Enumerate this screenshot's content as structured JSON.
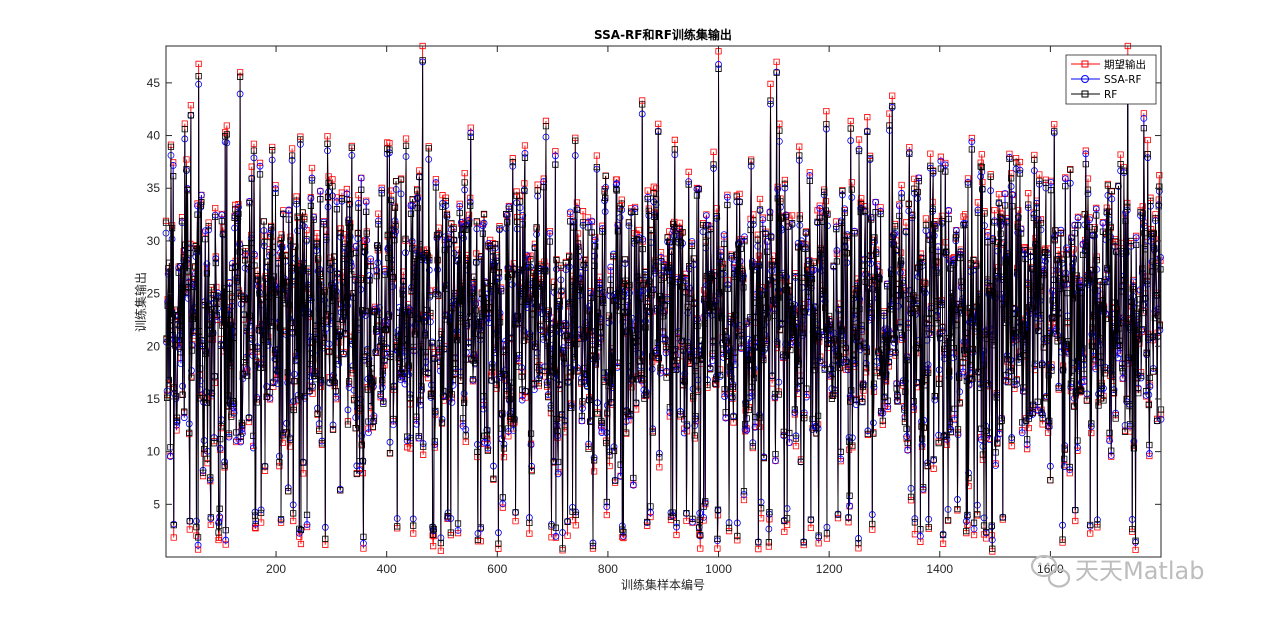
{
  "chart_data": {
    "type": "line",
    "title": "SSA-RF和RF训练集输出",
    "xlabel": "训练集样本编号",
    "ylabel": "训练集输出",
    "xlim": [
      1,
      1800
    ],
    "ylim": [
      0,
      48.5
    ],
    "xticks": [
      200,
      400,
      600,
      800,
      1000,
      1200,
      1400,
      1600
    ],
    "xtick_labels": [
      "200",
      "400",
      "600",
      "800",
      "1000",
      "1200",
      "1400",
      "1600"
    ],
    "yticks": [
      5,
      10,
      15,
      20,
      25,
      30,
      35,
      40,
      45
    ],
    "ytick_labels": [
      "5",
      "10",
      "15",
      "20",
      "25",
      "30",
      "35",
      "40",
      "45"
    ],
    "grid": false,
    "legend_position": "top-right",
    "sample_count": 1800,
    "series": [
      {
        "name": "期望输出",
        "color": "#ff0000",
        "marker": "square"
      },
      {
        "name": "SSA-RF",
        "color": "#0000ff",
        "marker": "circle"
      },
      {
        "name": "RF",
        "color": "#000000",
        "marker": "square"
      }
    ],
    "notable_points": [
      {
        "x": 60,
        "y": 46.8
      },
      {
        "x": 135,
        "y": 46.0
      },
      {
        "x": 465,
        "y": 48.5
      },
      {
        "x": 1000,
        "y": 48.0
      },
      {
        "x": 1105,
        "y": 47.0
      },
      {
        "x": 1740,
        "y": 48.5
      }
    ]
  },
  "watermark": {
    "text": "天天Matlab",
    "icon": "wechat-icon"
  }
}
